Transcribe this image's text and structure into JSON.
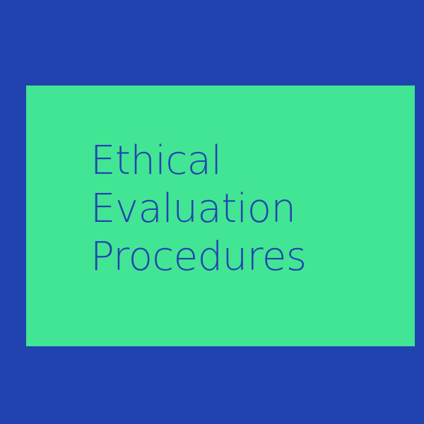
{
  "colors": {
    "background": "#2143B0",
    "panel": "#42E593",
    "text": "#2143B0"
  },
  "title": {
    "lines": [
      "Ethical",
      "Evaluation",
      "Procedures"
    ]
  }
}
